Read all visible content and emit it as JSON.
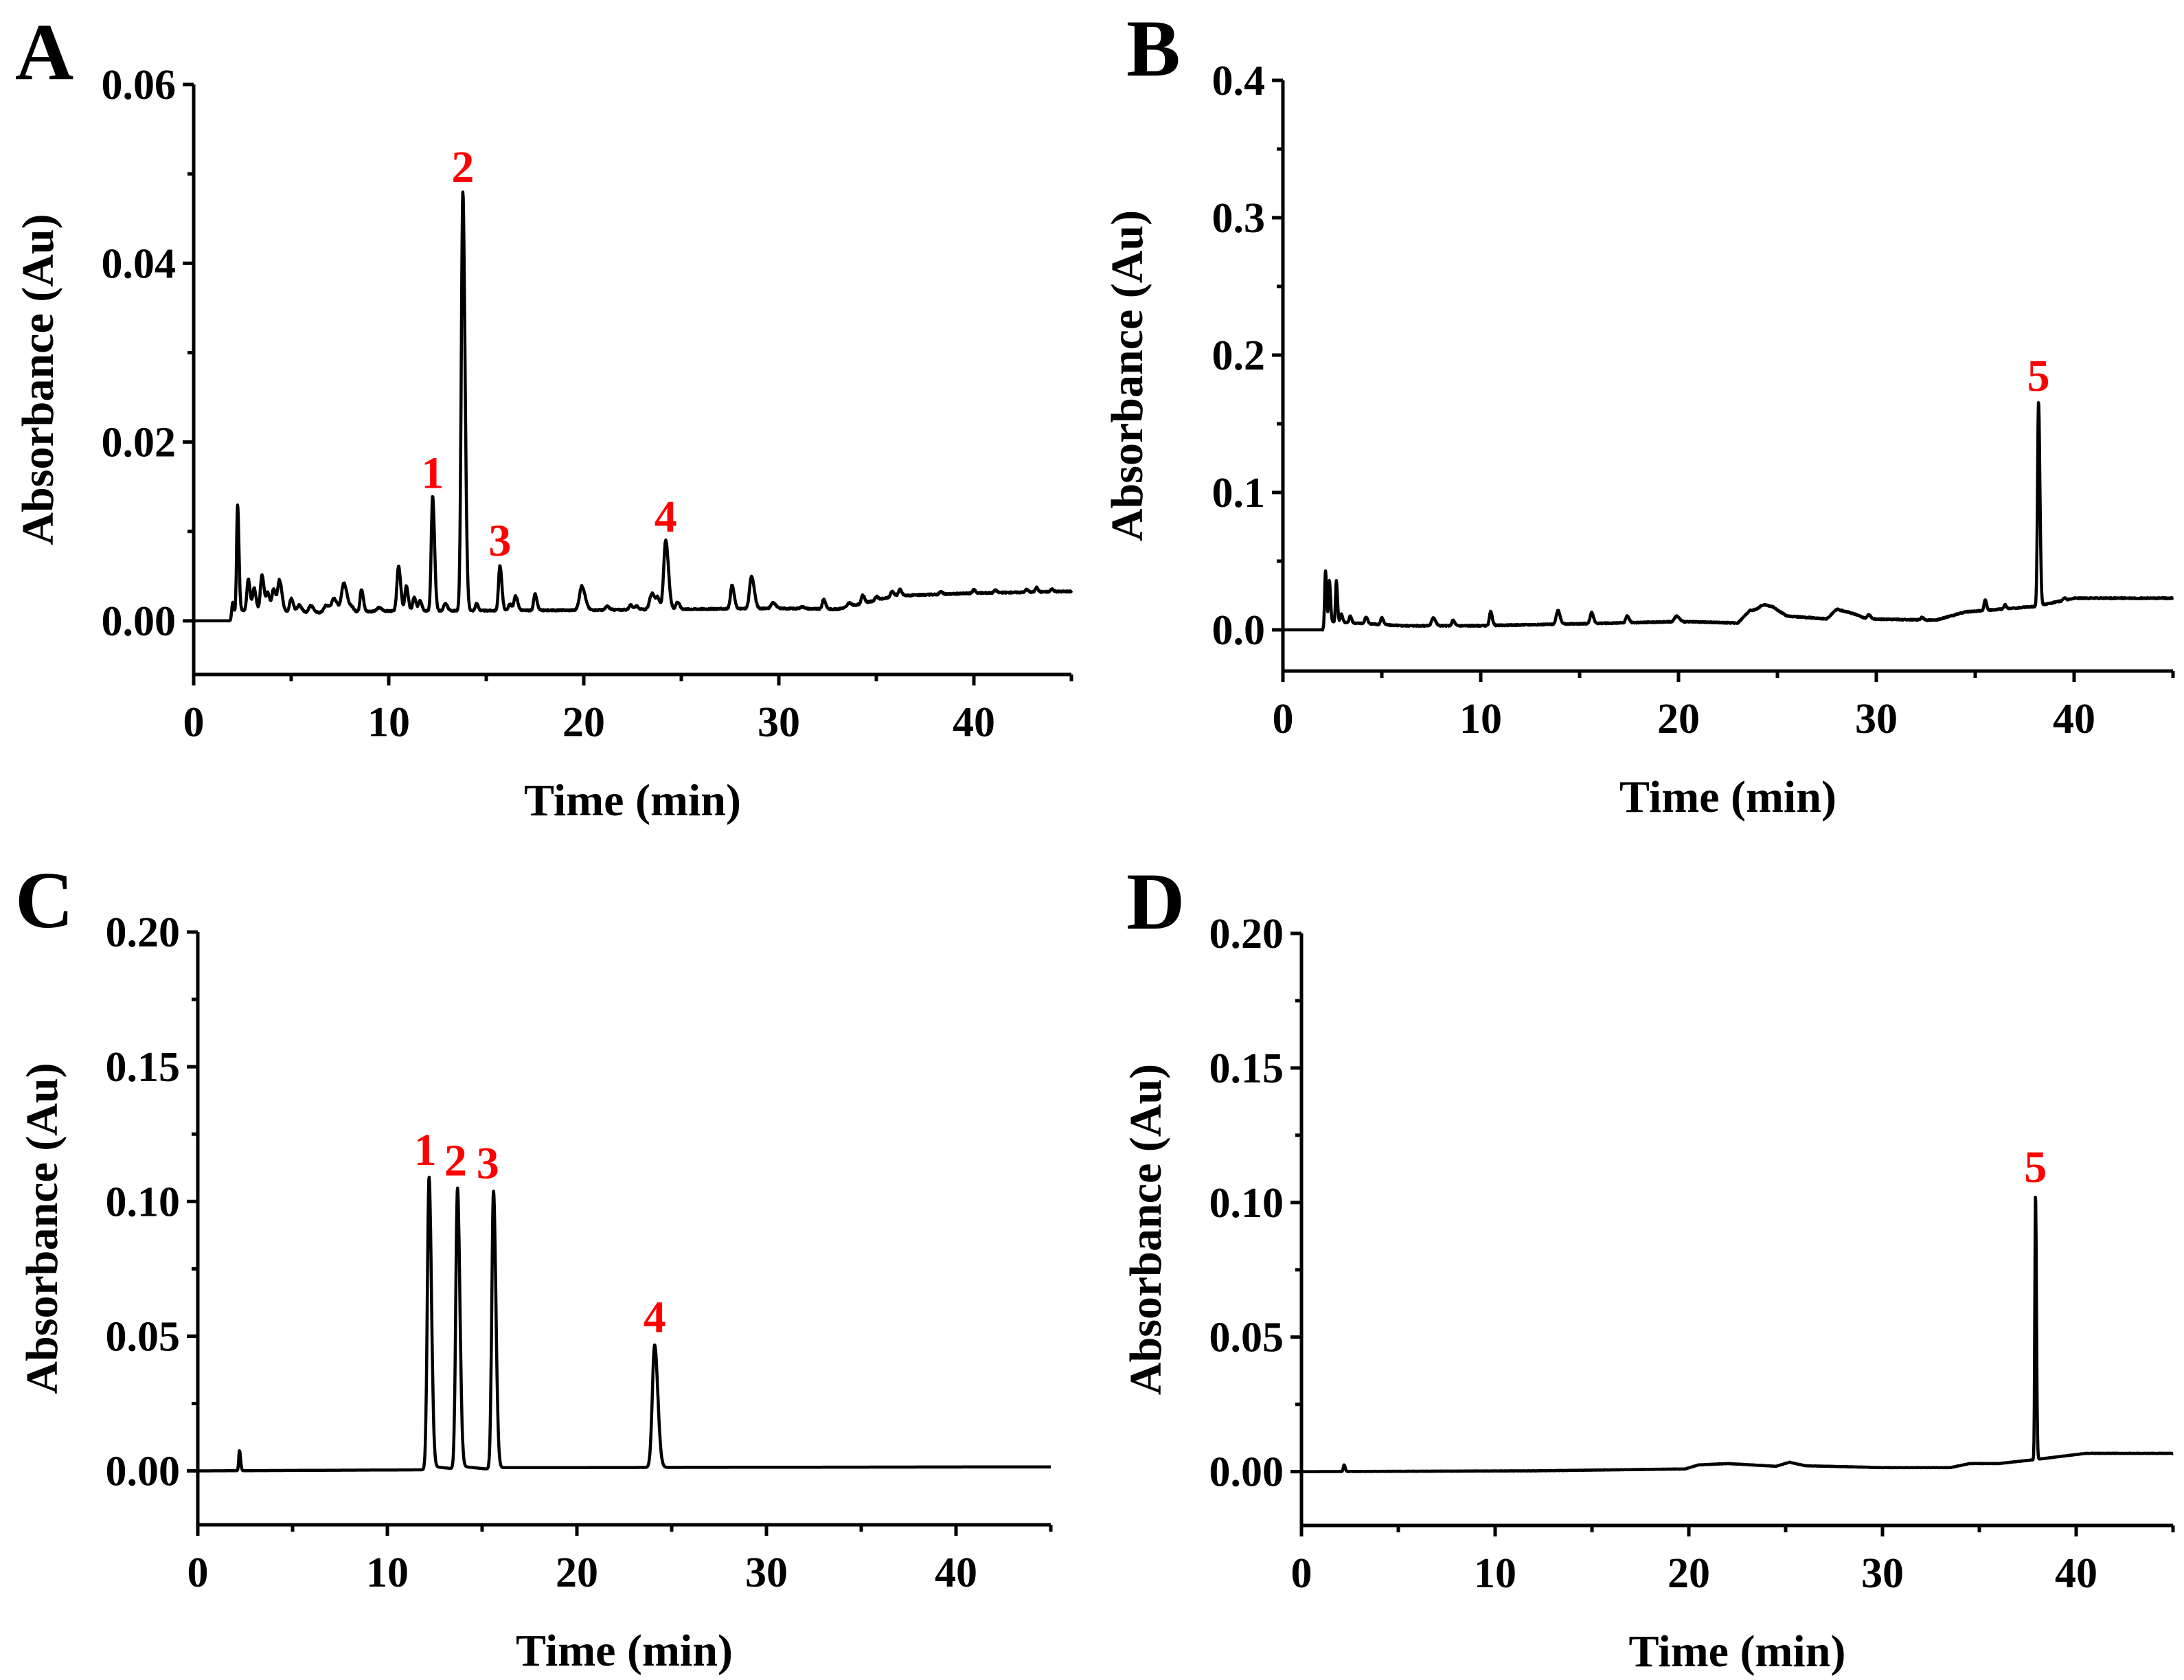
{
  "figure": {
    "label_color": "#ff0000",
    "trace_color": "#000000"
  },
  "chart_data": [
    {
      "panel": "A",
      "type": "line",
      "title": "",
      "xlabel": "Time (min)",
      "ylabel": "Absorbance (Au)",
      "xlim": [
        0,
        45
      ],
      "ylim": [
        -0.006,
        0.06
      ],
      "xticks": [
        0,
        10,
        20,
        30,
        40
      ],
      "xtick_labels": [
        "0",
        "10",
        "20",
        "30",
        "40"
      ],
      "x_minor_step": 5,
      "yticks": [
        0.0,
        0.02,
        0.04,
        0.06
      ],
      "ytick_labels": [
        "0.00",
        "0.02",
        "0.04",
        "0.06"
      ],
      "y_minor_step": 0.01,
      "grid": false,
      "baseline": [
        [
          0,
          0.0
        ],
        [
          2.0,
          0.0
        ],
        [
          2.3,
          0.0012
        ],
        [
          6,
          0.0009
        ],
        [
          10,
          0.0011
        ],
        [
          20,
          0.0012
        ],
        [
          30,
          0.0014
        ],
        [
          33,
          0.0013
        ],
        [
          36,
          0.0028
        ],
        [
          40,
          0.0031
        ],
        [
          45,
          0.0033
        ]
      ],
      "peaks": [
        {
          "t": 2.0,
          "h": 0.002,
          "w": 0.05
        },
        {
          "t": 2.25,
          "h": 0.012,
          "w": 0.05
        },
        {
          "t": 2.8,
          "h": 0.0035,
          "w": 0.07
        },
        {
          "t": 3.1,
          "h": 0.0025,
          "w": 0.07
        },
        {
          "t": 3.5,
          "h": 0.004,
          "w": 0.08
        },
        {
          "t": 3.8,
          "h": 0.002,
          "w": 0.08
        },
        {
          "t": 4.1,
          "h": 0.0025,
          "w": 0.08
        },
        {
          "t": 4.4,
          "h": 0.0035,
          "w": 0.09
        },
        {
          "t": 5.0,
          "h": 0.0015,
          "w": 0.08
        },
        {
          "t": 5.4,
          "h": 0.0008,
          "w": 0.1
        },
        {
          "t": 6.0,
          "h": 0.0008,
          "w": 0.1
        },
        {
          "t": 6.8,
          "h": 0.0008,
          "w": 0.12
        },
        {
          "t": 7.2,
          "h": 0.0015,
          "w": 0.12
        },
        {
          "t": 7.7,
          "h": 0.0032,
          "w": 0.12
        },
        {
          "t": 8.1,
          "h": 0.0005,
          "w": 0.08
        },
        {
          "t": 8.6,
          "h": 0.0025,
          "w": 0.07
        },
        {
          "t": 9.5,
          "h": 0.0004,
          "w": 0.1
        },
        {
          "t": 10.5,
          "h": 0.005,
          "w": 0.08
        },
        {
          "t": 10.9,
          "h": 0.0028,
          "w": 0.07
        },
        {
          "t": 11.3,
          "h": 0.0015,
          "w": 0.07
        },
        {
          "t": 11.6,
          "h": 0.0012,
          "w": 0.07
        },
        {
          "t": 12.25,
          "h": 0.0128,
          "w": 0.07
        },
        {
          "t": 12.9,
          "h": 0.0008,
          "w": 0.08
        },
        {
          "t": 13.8,
          "h": 0.0468,
          "w": 0.08
        },
        {
          "t": 14.5,
          "h": 0.0008,
          "w": 0.06
        },
        {
          "t": 15.7,
          "h": 0.005,
          "w": 0.07
        },
        {
          "t": 16.2,
          "h": 0.0007,
          "w": 0.07
        },
        {
          "t": 16.5,
          "h": 0.0016,
          "w": 0.08
        },
        {
          "t": 17.5,
          "h": 0.0018,
          "w": 0.07
        },
        {
          "t": 19.9,
          "h": 0.0027,
          "w": 0.12
        },
        {
          "t": 21.2,
          "h": 0.0004,
          "w": 0.08
        },
        {
          "t": 22.4,
          "h": 0.0005,
          "w": 0.08
        },
        {
          "t": 22.7,
          "h": 0.0004,
          "w": 0.08
        },
        {
          "t": 23.5,
          "h": 0.0018,
          "w": 0.12
        },
        {
          "t": 23.8,
          "h": 0.001,
          "w": 0.08
        },
        {
          "t": 24.2,
          "h": 0.0077,
          "w": 0.1
        },
        {
          "t": 24.8,
          "h": 0.0008,
          "w": 0.08
        },
        {
          "t": 27.6,
          "h": 0.0026,
          "w": 0.08
        },
        {
          "t": 28.6,
          "h": 0.0036,
          "w": 0.1
        },
        {
          "t": 29.7,
          "h": 0.0006,
          "w": 0.1
        },
        {
          "t": 31.2,
          "h": 0.0002,
          "w": 0.1
        },
        {
          "t": 32.3,
          "h": 0.0011,
          "w": 0.07
        },
        {
          "t": 33.6,
          "h": 0.0004,
          "w": 0.08
        },
        {
          "t": 34.3,
          "h": 0.0009,
          "w": 0.07
        },
        {
          "t": 35.0,
          "h": 0.0004,
          "w": 0.07
        },
        {
          "t": 35.8,
          "h": 0.0006,
          "w": 0.07
        },
        {
          "t": 36.2,
          "h": 0.0007,
          "w": 0.07
        },
        {
          "t": 38.3,
          "h": 0.0003,
          "w": 0.06
        },
        {
          "t": 40.0,
          "h": 0.0004,
          "w": 0.06
        },
        {
          "t": 41.1,
          "h": 0.0003,
          "w": 0.06
        },
        {
          "t": 42.7,
          "h": 0.0003,
          "w": 0.06
        },
        {
          "t": 43.2,
          "h": 0.0005,
          "w": 0.06
        },
        {
          "t": 44.0,
          "h": 0.0003,
          "w": 0.06
        }
      ],
      "noise": 0.00015,
      "annotations": [
        {
          "text": "1",
          "t": 12.25,
          "value": 0.0138
        },
        {
          "text": "2",
          "t": 13.8,
          "value": 0.048
        },
        {
          "text": "3",
          "t": 15.7,
          "value": 0.0062
        },
        {
          "text": "4",
          "t": 24.2,
          "value": 0.0089
        }
      ]
    },
    {
      "panel": "B",
      "type": "line",
      "title": "",
      "xlabel": "Time (min)",
      "ylabel": "Absorbance (Au)",
      "xlim": [
        0,
        45
      ],
      "ylim": [
        -0.03,
        0.4
      ],
      "xticks": [
        0,
        10,
        20,
        30,
        40
      ],
      "xtick_labels": [
        "0",
        "10",
        "20",
        "30",
        "40"
      ],
      "x_minor_step": 5,
      "yticks": [
        0.0,
        0.1,
        0.2,
        0.3,
        0.4
      ],
      "ytick_labels": [
        "0.0",
        "0.1",
        "0.2",
        "0.3",
        "0.4"
      ],
      "y_minor_step": 0.05,
      "grid": false,
      "baseline": [
        [
          0,
          0.0
        ],
        [
          2.0,
          0.0
        ],
        [
          2.3,
          0.006
        ],
        [
          6,
          0.003
        ],
        [
          10,
          0.003
        ],
        [
          17,
          0.005
        ],
        [
          20,
          0.006
        ],
        [
          23,
          0.005
        ],
        [
          23.6,
          0.014
        ],
        [
          24.8,
          0.016
        ],
        [
          25.5,
          0.01
        ],
        [
          27.5,
          0.008
        ],
        [
          28,
          0.015
        ],
        [
          28.8,
          0.012
        ],
        [
          29.5,
          0.008
        ],
        [
          33,
          0.007
        ],
        [
          34.5,
          0.013
        ],
        [
          38,
          0.017
        ],
        [
          40,
          0.023
        ],
        [
          45,
          0.023
        ]
      ],
      "peaks": [
        {
          "t": 2.15,
          "h": 0.04,
          "w": 0.04
        },
        {
          "t": 2.35,
          "h": 0.03,
          "w": 0.04
        },
        {
          "t": 2.7,
          "h": 0.03,
          "w": 0.04
        },
        {
          "t": 2.95,
          "h": 0.006,
          "w": 0.05
        },
        {
          "t": 3.4,
          "h": 0.005,
          "w": 0.05
        },
        {
          "t": 4.2,
          "h": 0.005,
          "w": 0.06
        },
        {
          "t": 5.0,
          "h": 0.005,
          "w": 0.06
        },
        {
          "t": 7.6,
          "h": 0.006,
          "w": 0.08
        },
        {
          "t": 8.6,
          "h": 0.004,
          "w": 0.06
        },
        {
          "t": 10.5,
          "h": 0.01,
          "w": 0.06
        },
        {
          "t": 13.9,
          "h": 0.01,
          "w": 0.08
        },
        {
          "t": 15.6,
          "h": 0.008,
          "w": 0.07
        },
        {
          "t": 17.4,
          "h": 0.005,
          "w": 0.07
        },
        {
          "t": 19.9,
          "h": 0.004,
          "w": 0.1
        },
        {
          "t": 24.3,
          "h": 0.003,
          "w": 0.2
        },
        {
          "t": 29.6,
          "h": 0.003,
          "w": 0.08
        },
        {
          "t": 32.3,
          "h": 0.002,
          "w": 0.06
        },
        {
          "t": 35.5,
          "h": 0.008,
          "w": 0.05
        },
        {
          "t": 36.5,
          "h": 0.003,
          "w": 0.05
        },
        {
          "t": 38.2,
          "h": 0.149,
          "w": 0.05
        },
        {
          "t": 39.5,
          "h": 0.002,
          "w": 0.05
        }
      ],
      "noise": 0.0008,
      "annotations": [
        {
          "text": "5",
          "t": 38.2,
          "value": 0.167
        }
      ]
    },
    {
      "panel": "C",
      "type": "line",
      "title": "",
      "xlabel": "Time (min)",
      "ylabel": "Absorbance (Au)",
      "xlim": [
        0,
        45
      ],
      "ylim": [
        -0.02,
        0.2
      ],
      "xticks": [
        0,
        10,
        20,
        30,
        40
      ],
      "xtick_labels": [
        "0",
        "10",
        "20",
        "30",
        "40"
      ],
      "x_minor_step": 5,
      "yticks": [
        0.0,
        0.05,
        0.1,
        0.15,
        0.2
      ],
      "ytick_labels": [
        "0.00",
        "0.05",
        "0.10",
        "0.15",
        "0.20"
      ],
      "y_minor_step": 0.025,
      "grid": false,
      "baseline": [
        [
          0,
          0.0
        ],
        [
          11.9,
          0.0004
        ],
        [
          12.4,
          0.0016
        ],
        [
          13.5,
          0.0008
        ],
        [
          14.0,
          0.0016
        ],
        [
          15.4,
          0.0006
        ],
        [
          16.0,
          0.0012
        ],
        [
          45,
          0.0015
        ]
      ],
      "peaks": [
        {
          "t": 2.2,
          "h": 0.0075,
          "w": 0.04
        },
        {
          "t": 12.2,
          "h": 0.108,
          "w": 0.09
        },
        {
          "t": 13.7,
          "h": 0.104,
          "w": 0.09
        },
        {
          "t": 15.6,
          "h": 0.103,
          "w": 0.09
        },
        {
          "t": 24.1,
          "h": 0.0455,
          "w": 0.12
        }
      ],
      "noise": 0.0,
      "annotations": [
        {
          "text": "1",
          "t": 12.0,
          "value": 0.11
        },
        {
          "text": "2",
          "t": 13.6,
          "value": 0.106
        },
        {
          "text": "3",
          "t": 15.3,
          "value": 0.105
        },
        {
          "text": "4",
          "t": 24.1,
          "value": 0.048
        }
      ]
    },
    {
      "panel": "D",
      "type": "line",
      "title": "",
      "xlabel": "Time (min)",
      "ylabel": "Absorbance (Au)",
      "xlim": [
        0,
        45
      ],
      "ylim": [
        -0.02,
        0.2
      ],
      "xticks": [
        0,
        10,
        20,
        30,
        40
      ],
      "xtick_labels": [
        "0",
        "10",
        "20",
        "30",
        "40"
      ],
      "x_minor_step": 5,
      "yticks": [
        0.0,
        0.05,
        0.1,
        0.15,
        0.2
      ],
      "ytick_labels": [
        "0.00",
        "0.05",
        "0.10",
        "0.15",
        "0.20"
      ],
      "y_minor_step": 0.025,
      "grid": false,
      "baseline": [
        [
          0,
          0.0
        ],
        [
          12,
          0.0003
        ],
        [
          19.8,
          0.001
        ],
        [
          20.5,
          0.0025
        ],
        [
          22,
          0.003
        ],
        [
          24.5,
          0.002
        ],
        [
          25.2,
          0.0035
        ],
        [
          26,
          0.0022
        ],
        [
          30,
          0.0015
        ],
        [
          33.5,
          0.0015
        ],
        [
          34.5,
          0.003
        ],
        [
          36,
          0.003
        ],
        [
          37.9,
          0.0045
        ],
        [
          40.5,
          0.0068
        ],
        [
          45,
          0.0068
        ]
      ],
      "peaks": [
        {
          "t": 2.2,
          "h": 0.0025,
          "w": 0.04
        },
        {
          "t": 37.9,
          "h": 0.099,
          "w": 0.035
        }
      ],
      "noise": 0.0001,
      "annotations": [
        {
          "text": "5",
          "t": 37.9,
          "value": 0.104
        }
      ]
    }
  ]
}
